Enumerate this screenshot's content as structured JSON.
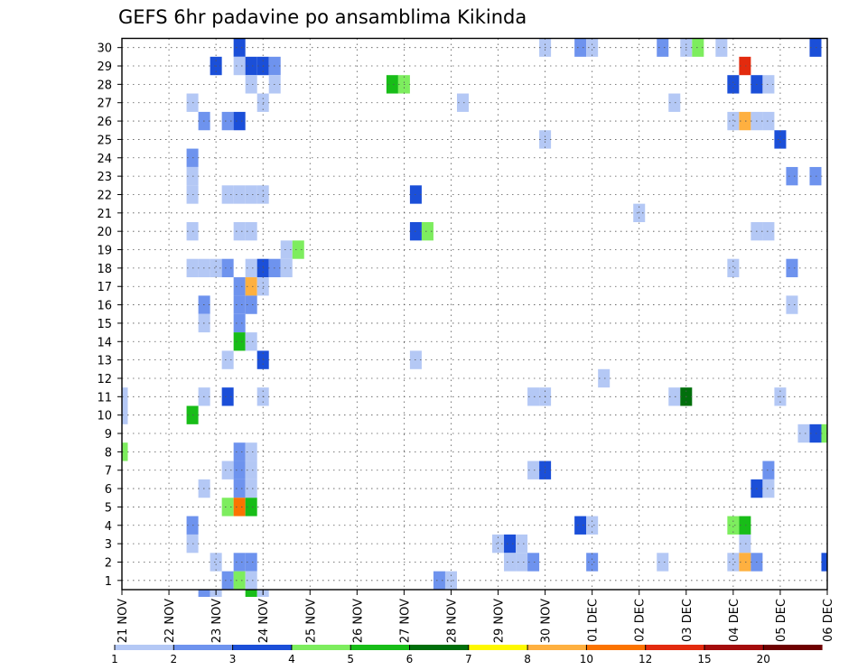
{
  "chart_data": {
    "type": "heatmap",
    "title": "GEFS 6hr padavine po ansamblima Kikinda",
    "xlabel": "",
    "ylabel": "",
    "x_tick_labels": [
      "21 NOV",
      "22 NOV",
      "23 NOV",
      "24 NOV",
      "25 NOV",
      "26 NOV",
      "27 NOV",
      "28 NOV",
      "29 NOV",
      "30 NOV",
      "01 DEC",
      "02 DEC",
      "03 DEC",
      "04 DEC",
      "05 DEC",
      "06 DEC"
    ],
    "x_range_steps_6h": [
      0,
      60
    ],
    "y_tick_labels": [
      "1",
      "2",
      "3",
      "4",
      "5",
      "6",
      "7",
      "8",
      "9",
      "10",
      "11",
      "12",
      "13",
      "14",
      "15",
      "16",
      "17",
      "18",
      "19",
      "20",
      "21",
      "22",
      "23",
      "24",
      "25",
      "26",
      "27",
      "28",
      "29",
      "30"
    ],
    "y_range_members": [
      0.5,
      30.5
    ],
    "grid": true,
    "colorbar": {
      "bounds": [
        1,
        2,
        3,
        4,
        5,
        6,
        7,
        8,
        10,
        12,
        15,
        20
      ],
      "labels": [
        "1",
        "2",
        "3",
        "4",
        "5",
        "6",
        "7",
        "8",
        "10",
        "12",
        "15",
        "20"
      ],
      "colors": [
        "#b4c8f5",
        "#6e93ee",
        "#1b4fd8",
        "#7ded5e",
        "#18bd18",
        "#006f0c",
        "#fef800",
        "#feb040",
        "#fb7300",
        "#e32b0e",
        "#a40c0c",
        "#6e0000"
      ]
    },
    "cells_format": "[x_step_6h_from_21NOV_00z, member, precip_mm]",
    "cells": [
      [
        0,
        11,
        1.5
      ],
      [
        0,
        10,
        1.5
      ],
      [
        0,
        8,
        4.5
      ],
      [
        6,
        27,
        1.5
      ],
      [
        6,
        24,
        2.5
      ],
      [
        6,
        23,
        1.5
      ],
      [
        6,
        22,
        1.5
      ],
      [
        6,
        20,
        1.5
      ],
      [
        6,
        18,
        1.5
      ],
      [
        6,
        10,
        5.5
      ],
      [
        6,
        4,
        2.5
      ],
      [
        6,
        3,
        1.5
      ],
      [
        7,
        26,
        2.5
      ],
      [
        7,
        18,
        1.5
      ],
      [
        7,
        16,
        2.5
      ],
      [
        7,
        15,
        1.5
      ],
      [
        7,
        11,
        1.5
      ],
      [
        7,
        6,
        1.5
      ],
      [
        7,
        0,
        2.5
      ],
      [
        8,
        29,
        3.5
      ],
      [
        8,
        18,
        1.5
      ],
      [
        8,
        2,
        1.5
      ],
      [
        8,
        0,
        1.5
      ],
      [
        9,
        26,
        2.5
      ],
      [
        9,
        22,
        1.5
      ],
      [
        9,
        18,
        2.5
      ],
      [
        9,
        13,
        1.5
      ],
      [
        9,
        11,
        3.5
      ],
      [
        9,
        7,
        1.5
      ],
      [
        9,
        5,
        4.5
      ],
      [
        9,
        1,
        2.5
      ],
      [
        10,
        30,
        3.5
      ],
      [
        10,
        29,
        1.5
      ],
      [
        10,
        26,
        3.5
      ],
      [
        10,
        22,
        1.5
      ],
      [
        10,
        20,
        1.5
      ],
      [
        10,
        17,
        2.5
      ],
      [
        10,
        16,
        2.5
      ],
      [
        10,
        15,
        2.5
      ],
      [
        10,
        14,
        5.5
      ],
      [
        10,
        8,
        2.5
      ],
      [
        10,
        7,
        2.5
      ],
      [
        10,
        6,
        2.5
      ],
      [
        10,
        5,
        11
      ],
      [
        10,
        2,
        2.5
      ],
      [
        10,
        1,
        4.5
      ],
      [
        11,
        29,
        3.5
      ],
      [
        11,
        28,
        1.5
      ],
      [
        11,
        22,
        1.5
      ],
      [
        11,
        20,
        1.5
      ],
      [
        11,
        18,
        1.5
      ],
      [
        11,
        17,
        9
      ],
      [
        11,
        16,
        2.5
      ],
      [
        11,
        14,
        1.5
      ],
      [
        11,
        8,
        1.5
      ],
      [
        11,
        7,
        1.5
      ],
      [
        11,
        6,
        1.5
      ],
      [
        11,
        5,
        5.5
      ],
      [
        11,
        2,
        2.5
      ],
      [
        11,
        1,
        1.5
      ],
      [
        11,
        0,
        5.5
      ],
      [
        12,
        29,
        3.5
      ],
      [
        12,
        27,
        1.5
      ],
      [
        12,
        22,
        1.5
      ],
      [
        12,
        18,
        3.5
      ],
      [
        12,
        17,
        1.5
      ],
      [
        12,
        13,
        3.5
      ],
      [
        12,
        11,
        1.5
      ],
      [
        12,
        0,
        1.5
      ],
      [
        13,
        29,
        2.5
      ],
      [
        13,
        28,
        1.5
      ],
      [
        13,
        18,
        2.5
      ],
      [
        14,
        19,
        1.5
      ],
      [
        14,
        18,
        1.5
      ],
      [
        15,
        19,
        4.5
      ],
      [
        23,
        28,
        5.5
      ],
      [
        24,
        28,
        4.5
      ],
      [
        25,
        22,
        3.5
      ],
      [
        25,
        20,
        3.5
      ],
      [
        25,
        13,
        1.5
      ],
      [
        26,
        20,
        4.5
      ],
      [
        27,
        1,
        2.5
      ],
      [
        28,
        1,
        1.5
      ],
      [
        29,
        27,
        1.5
      ],
      [
        32,
        3,
        1.5
      ],
      [
        33,
        3,
        3.5
      ],
      [
        33,
        2,
        1.5
      ],
      [
        34,
        3,
        1.5
      ],
      [
        34,
        2,
        1.5
      ],
      [
        35,
        11,
        1.5
      ],
      [
        35,
        7,
        1.5
      ],
      [
        35,
        2,
        2.5
      ],
      [
        36,
        30,
        1.5
      ],
      [
        36,
        25,
        1.5
      ],
      [
        36,
        11,
        1.5
      ],
      [
        36,
        7,
        3.5
      ],
      [
        39,
        30,
        2.5
      ],
      [
        39,
        4,
        3.5
      ],
      [
        40,
        30,
        1.5
      ],
      [
        40,
        4,
        1.5
      ],
      [
        40,
        2,
        2.5
      ],
      [
        41,
        12,
        1.5
      ],
      [
        44,
        21,
        1.5
      ],
      [
        46,
        30,
        2.5
      ],
      [
        46,
        2,
        1.5
      ],
      [
        47,
        27,
        1.5
      ],
      [
        47,
        11,
        1.5
      ],
      [
        48,
        30,
        1.5
      ],
      [
        48,
        11,
        6.5
      ],
      [
        49,
        30,
        4.5
      ],
      [
        51,
        30,
        1.5
      ],
      [
        52,
        28,
        3.5
      ],
      [
        52,
        26,
        1.5
      ],
      [
        52,
        18,
        1.5
      ],
      [
        52,
        4,
        4.5
      ],
      [
        52,
        2,
        1.5
      ],
      [
        53,
        29,
        14
      ],
      [
        53,
        26,
        9
      ],
      [
        53,
        4,
        5.5
      ],
      [
        53,
        3,
        1.5
      ],
      [
        53,
        2,
        9
      ],
      [
        54,
        28,
        3.5
      ],
      [
        54,
        26,
        1.5
      ],
      [
        54,
        20,
        1.5
      ],
      [
        54,
        6,
        3.5
      ],
      [
        54,
        2,
        2.5
      ],
      [
        55,
        28,
        1.5
      ],
      [
        55,
        26,
        1.5
      ],
      [
        55,
        20,
        1.5
      ],
      [
        55,
        7,
        2.5
      ],
      [
        55,
        6,
        1.5
      ],
      [
        56,
        25,
        3.5
      ],
      [
        56,
        11,
        1.5
      ],
      [
        57,
        23,
        2.5
      ],
      [
        57,
        18,
        2.5
      ],
      [
        57,
        16,
        1.5
      ],
      [
        58,
        9,
        1.5
      ],
      [
        59,
        30,
        3.5
      ],
      [
        59,
        23,
        2.5
      ],
      [
        59,
        9,
        3.5
      ],
      [
        60,
        9,
        4.5
      ],
      [
        60,
        2,
        3.5
      ]
    ]
  }
}
